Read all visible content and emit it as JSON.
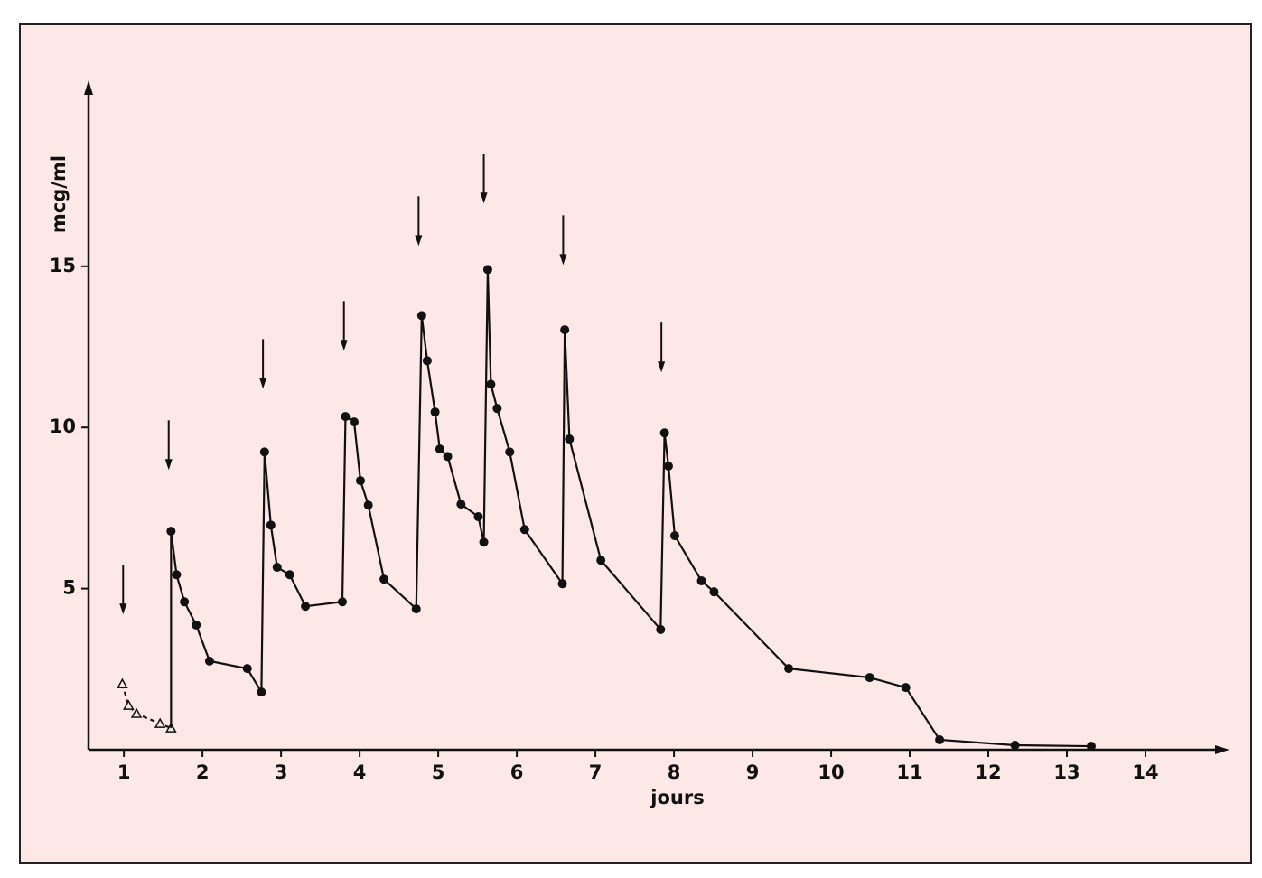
{
  "chart_data": {
    "type": "line",
    "x_label": "jours",
    "y_label": "mcg/ml",
    "xlim": [
      0.55,
      15
    ],
    "ylim": [
      0,
      20.6
    ],
    "xticks": [
      1,
      2,
      3,
      4,
      5,
      6,
      7,
      8,
      9,
      10,
      11,
      12,
      13,
      14
    ],
    "yticks": [
      5,
      10,
      15
    ],
    "series": [
      {
        "color": "#111111",
        "dashed": true,
        "marker": "triangle",
        "x": [
          0.98,
          1.06,
          1.16,
          1.46,
          1.6
        ],
        "values": [
          2.04,
          1.37,
          1.12,
          0.81,
          0.67
        ]
      },
      {
        "color": "#111111",
        "dashed": false,
        "marker": "circle",
        "x": [
          1.6,
          1.67,
          1.77,
          1.92,
          2.09,
          2.57,
          2.75,
          2.79,
          2.87,
          2.95,
          3.11,
          3.31,
          3.78,
          3.82,
          3.93,
          4.01,
          4.11,
          4.31,
          4.72,
          4.79,
          4.86,
          4.96,
          5.02,
          5.12,
          5.29,
          5.51,
          5.58,
          5.63,
          5.67,
          5.75,
          5.91,
          6.1,
          6.58,
          6.61,
          6.67,
          7.07,
          7.83,
          7.88,
          7.93,
          8.01,
          8.35,
          8.51,
          9.46,
          10.49,
          10.95,
          11.38,
          12.34,
          13.31
        ],
        "values": [
          6.78,
          5.43,
          4.59,
          3.87,
          2.75,
          2.52,
          1.79,
          9.24,
          6.97,
          5.66,
          5.43,
          4.45,
          4.59,
          10.34,
          10.17,
          8.35,
          7.59,
          5.29,
          4.37,
          13.47,
          12.07,
          10.48,
          9.33,
          9.1,
          7.62,
          7.23,
          6.44,
          14.9,
          11.34,
          10.59,
          9.24,
          6.83,
          5.15,
          13.03,
          9.64,
          5.88,
          3.73,
          9.83,
          8.8,
          6.64,
          5.24,
          4.9,
          2.52,
          2.24,
          1.93,
          0.31,
          0.14,
          0.11
        ]
      }
    ],
    "arrows": [
      {
        "x": 0.99,
        "y": 4.2
      },
      {
        "x": 1.57,
        "y": 8.68
      },
      {
        "x": 2.77,
        "y": 11.2
      },
      {
        "x": 3.8,
        "y": 12.38
      },
      {
        "x": 4.75,
        "y": 15.63
      },
      {
        "x": 5.58,
        "y": 16.95
      },
      {
        "x": 6.59,
        "y": 15.04
      },
      {
        "x": 7.84,
        "y": 11.71
      }
    ]
  }
}
